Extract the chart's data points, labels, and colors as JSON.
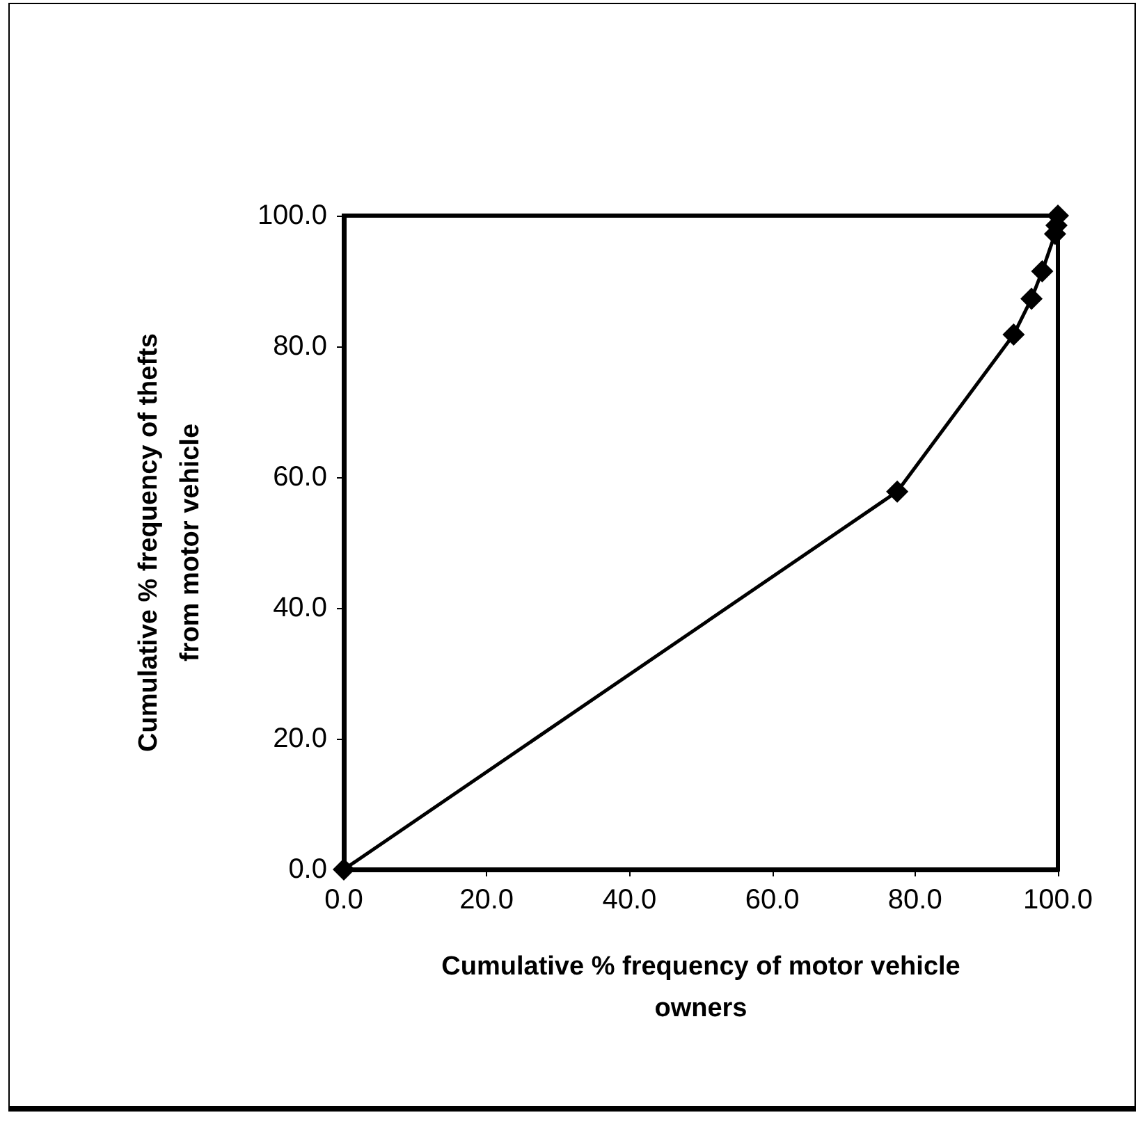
{
  "chart_data": {
    "type": "line",
    "xlabel": "Cumulative % frequency of motor vehicle owners",
    "ylabel": "Cumulative % frequency of thefts from motor vehicle",
    "x": [
      0,
      77.5,
      93.8,
      96.3,
      97.8,
      99.6,
      99.8,
      100
    ],
    "series": [
      {
        "color": "#000000",
        "values": [
          0,
          57.8,
          81.8,
          87.3,
          91.5,
          97.2,
          98.5,
          100
        ]
      }
    ],
    "xlim": [
      0,
      100
    ],
    "xticks": [
      {
        "value": 0,
        "label": "0.0"
      },
      {
        "value": 20,
        "label": "20.0"
      },
      {
        "value": 40,
        "label": "40.0"
      },
      {
        "value": 60,
        "label": "60.0"
      },
      {
        "value": 80,
        "label": "80.0"
      },
      {
        "value": 100,
        "label": "100.0"
      }
    ],
    "ylim": [
      0,
      100
    ],
    "yticks": [
      {
        "value": 0,
        "label": "0.0"
      },
      {
        "value": 20,
        "label": "20.0"
      },
      {
        "value": 40,
        "label": "40.0"
      },
      {
        "value": 60,
        "label": "60.0"
      },
      {
        "value": 80,
        "label": "80.0"
      },
      {
        "value": 100,
        "label": "100.0"
      }
    ],
    "grid": false,
    "marker": "diamond",
    "line_style": "solid"
  }
}
